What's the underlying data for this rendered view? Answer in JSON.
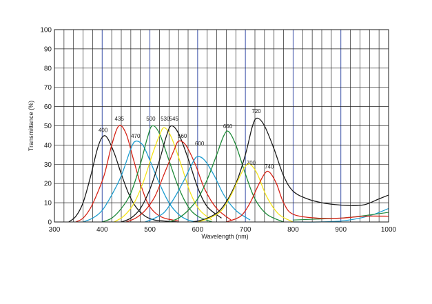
{
  "chart_data": {
    "type": "line",
    "xlabel": "Wavelength (nm)",
    "ylabel": "Transmittance (%)",
    "xlim": [
      300,
      1000
    ],
    "ylim": [
      0,
      100
    ],
    "x_ticks": [
      300,
      400,
      500,
      600,
      700,
      800,
      900,
      1000
    ],
    "y_ticks": [
      0,
      10,
      20,
      30,
      40,
      50,
      60,
      70,
      80,
      90,
      100
    ],
    "minor_x_step": 20,
    "major_x_step": 100,
    "grid": true,
    "colors": {
      "black": "#1a1a1a",
      "red": "#d62418",
      "cyan": "#1c9ccf",
      "green": "#1f8a3a",
      "yellow": "#f4e41c",
      "grid_major": "#3a50a8",
      "grid_minor": "#222222"
    },
    "series": [
      {
        "name": "400",
        "color": "black",
        "x": [
          330,
          345,
          360,
          375,
          390,
          400,
          410,
          425,
          440,
          455,
          470,
          490,
          510,
          530,
          560
        ],
        "y": [
          0,
          3,
          10,
          23,
          38,
          44,
          44,
          36,
          25,
          15,
          8,
          3,
          1,
          0.5,
          0
        ]
      },
      {
        "name": "435",
        "color": "red",
        "x": [
          345,
          360,
          375,
          390,
          405,
          420,
          435,
          450,
          465,
          480,
          495,
          510,
          530,
          560
        ],
        "y": [
          0,
          2,
          7,
          15,
          25,
          40,
          50,
          46,
          33,
          20,
          10,
          5,
          2,
          0.5
        ]
      },
      {
        "name": "470",
        "color": "cyan",
        "x": [
          360,
          380,
          400,
          420,
          440,
          460,
          470,
          485,
          500,
          520,
          540,
          560,
          580,
          600
        ],
        "y": [
          0,
          2,
          6,
          14,
          24,
          38,
          42,
          40,
          32,
          20,
          10,
          4,
          1,
          0
        ]
      },
      {
        "name": "500",
        "color": "green",
        "x": [
          400,
          420,
          440,
          460,
          480,
          495,
          505,
          520,
          540,
          560,
          580,
          600,
          630
        ],
        "y": [
          0,
          2,
          7,
          15,
          30,
          44,
          50,
          46,
          32,
          18,
          8,
          3,
          0
        ]
      },
      {
        "name": "530",
        "color": "yellow",
        "x": [
          425,
          445,
          465,
          485,
          505,
          520,
          530,
          545,
          565,
          585,
          605,
          630
        ],
        "y": [
          0,
          3,
          9,
          20,
          35,
          45,
          49,
          44,
          30,
          15,
          6,
          1
        ]
      },
      {
        "name": "545",
        "color": "black",
        "x": [
          440,
          460,
          480,
          500,
          520,
          535,
          545,
          560,
          580,
          600,
          620,
          650
        ],
        "y": [
          0,
          2,
          7,
          17,
          32,
          45,
          50,
          46,
          33,
          18,
          8,
          2
        ]
      },
      {
        "name": "560",
        "color": "red",
        "x": [
          450,
          470,
          490,
          510,
          530,
          550,
          560,
          575,
          595,
          615,
          640,
          670
        ],
        "y": [
          0,
          2,
          6,
          13,
          25,
          37,
          42,
          40,
          30,
          17,
          7,
          1
        ]
      },
      {
        "name": "600",
        "color": "cyan",
        "x": [
          490,
          510,
          530,
          550,
          570,
          590,
          600,
          615,
          635,
          655,
          680,
          710
        ],
        "y": [
          0,
          2,
          5,
          12,
          21,
          31,
          34,
          32,
          24,
          14,
          6,
          1
        ]
      },
      {
        "name": "660",
        "color": "green",
        "x": [
          540,
          560,
          580,
          600,
          620,
          640,
          655,
          665,
          680,
          700,
          720,
          745,
          780
        ],
        "y": [
          0,
          2,
          6,
          12,
          22,
          35,
          45,
          47,
          40,
          25,
          12,
          4,
          0
        ]
      },
      {
        "name": "720",
        "color": "black",
        "x": [
          590,
          620,
          650,
          680,
          700,
          715,
          725,
          740,
          760,
          780,
          800,
          830,
          860,
          890,
          920,
          950,
          980,
          1000
        ],
        "y": [
          0,
          2,
          7,
          20,
          35,
          50,
          54,
          50,
          38,
          24,
          16,
          12,
          10,
          9,
          8.5,
          9,
          12,
          14
        ]
      },
      {
        "name": "700",
        "color": "yellow",
        "x": [
          600,
          625,
          650,
          670,
          685,
          700,
          710,
          725,
          745,
          770,
          800
        ],
        "y": [
          0,
          2,
          6,
          14,
          22,
          29,
          30,
          25,
          13,
          4,
          0
        ]
      },
      {
        "name": "740",
        "color": "red",
        "x": [
          660,
          690,
          710,
          725,
          740,
          750,
          765,
          780,
          800,
          850,
          900,
          950,
          1000
        ],
        "y": [
          0,
          3,
          10,
          18,
          25,
          26,
          20,
          10,
          4,
          2,
          2,
          3,
          3
        ]
      }
    ],
    "tail_series": [
      {
        "color": "cyan",
        "x": [
          800,
          850,
          900,
          940,
          970,
          1000
        ],
        "y": [
          0,
          0,
          0.5,
          2,
          4,
          7
        ]
      },
      {
        "color": "green",
        "x": [
          800,
          850,
          900,
          940,
          1000
        ],
        "y": [
          1,
          1.5,
          2,
          3,
          5
        ]
      }
    ],
    "peak_labels": [
      {
        "text": "400",
        "x": 402,
        "y": 46
      },
      {
        "text": "435",
        "x": 436,
        "y": 52
      },
      {
        "text": "470",
        "x": 470,
        "y": 43
      },
      {
        "text": "500",
        "x": 502,
        "y": 52
      },
      {
        "text": "530",
        "x": 532,
        "y": 52
      },
      {
        "text": "545",
        "x": 550,
        "y": 52
      },
      {
        "text": "560",
        "x": 568,
        "y": 43
      },
      {
        "text": "600",
        "x": 604,
        "y": 39
      },
      {
        "text": "660",
        "x": 663,
        "y": 48
      },
      {
        "text": "720",
        "x": 723,
        "y": 56
      },
      {
        "text": "700",
        "x": 712,
        "y": 29
      },
      {
        "text": "740",
        "x": 750,
        "y": 27
      }
    ]
  }
}
